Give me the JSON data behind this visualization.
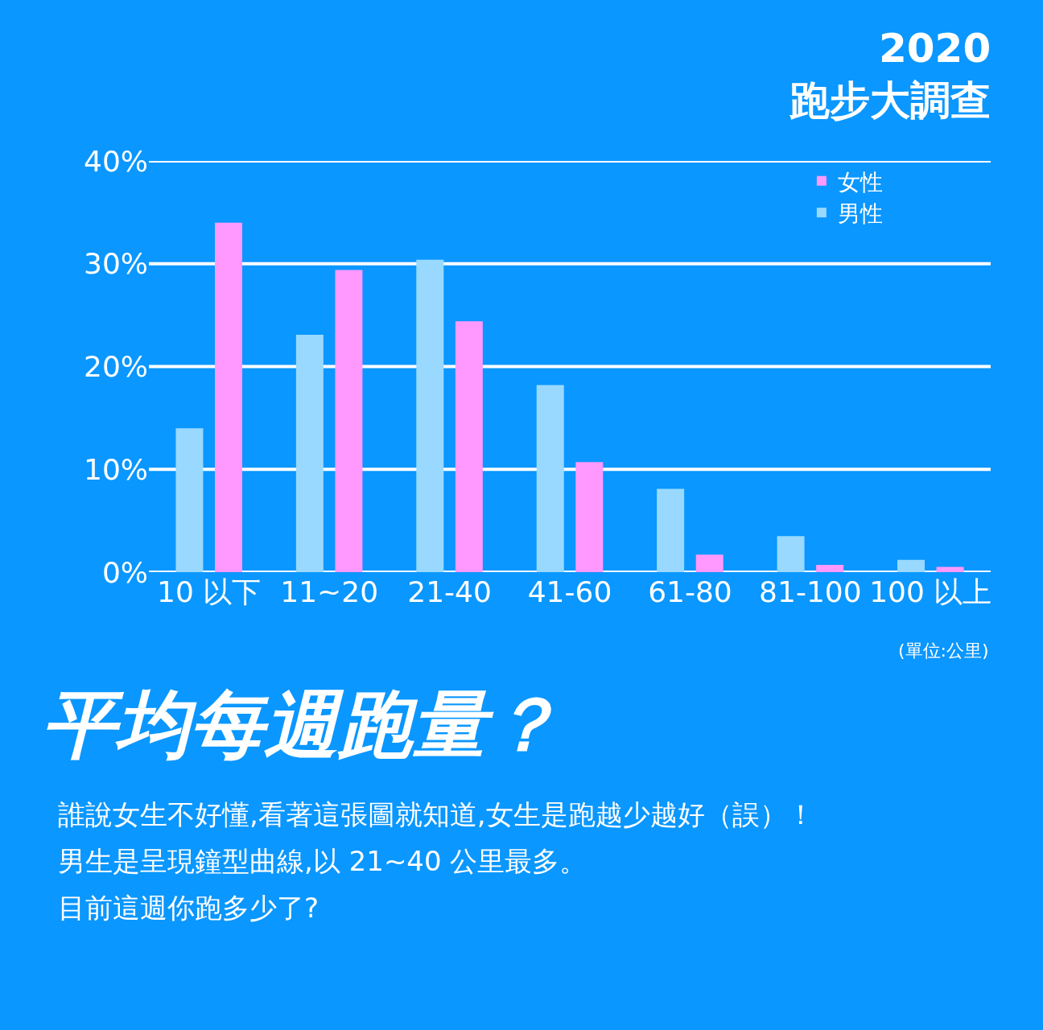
{
  "chart_data": {
    "type": "bar",
    "title": "2020\n跑步大調查",
    "subtitle": "平均每週跑量？",
    "categories": [
      "10 以下",
      "11~20",
      "21-40",
      "41-60",
      "61-80",
      "81-100",
      "100 以上"
    ],
    "series": [
      {
        "name": "男性",
        "color": "#99d9ff",
        "values": [
          14.0,
          23.1,
          30.4,
          18.2,
          8.1,
          3.5,
          1.2
        ]
      },
      {
        "name": "女性",
        "color": "#ff99ff",
        "values": [
          34.0,
          29.4,
          24.4,
          10.7,
          1.7,
          0.7,
          0.5
        ]
      }
    ],
    "ylim": [
      0,
      40
    ],
    "yticks": [
      {
        "value": 0,
        "label": "0%"
      },
      {
        "value": 10,
        "label": "10%"
      },
      {
        "value": 20,
        "label": "20%"
      },
      {
        "value": 30,
        "label": "30%"
      },
      {
        "value": 40,
        "label": "40%"
      }
    ],
    "grid": "y",
    "legend": "top right",
    "annotations": [
      "(單位:公里)",
      "誰說女生不好懂,看著這張圖就知道,女生是跑越少越好（誤）！",
      "男生是呈現鐘型曲線,以 21~40 公里最多。",
      "目前這週你跑多少了?"
    ]
  }
}
